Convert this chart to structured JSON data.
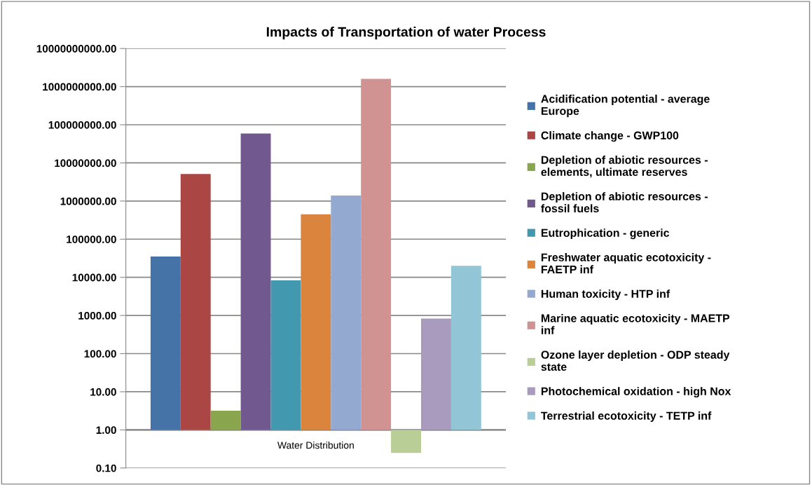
{
  "chart_data": {
    "type": "bar",
    "title": "Impacts of Transportation of water Process",
    "categories": [
      "Water Distribution"
    ],
    "series": [
      {
        "name": "Acidification potential - average Europe",
        "color": "#4572a7",
        "base": [
          1
        ],
        "values": [
          34999
        ]
      },
      {
        "name": "Climate change - GWP100",
        "color": "#aa4643",
        "base": [
          1
        ],
        "values": [
          5099999
        ]
      },
      {
        "name": "Depletion of abiotic resources - elements, ultimate reserves",
        "color": "#89a54e",
        "base": [
          1
        ],
        "values": [
          2.2
        ]
      },
      {
        "name": "Depletion of abiotic resources - fossil fuels",
        "color": "#71588f",
        "base": [
          1
        ],
        "values": [
          58999999
        ]
      },
      {
        "name": "Eutrophication - generic",
        "color": "#4198af",
        "base": [
          1
        ],
        "values": [
          8299
        ]
      },
      {
        "name": "Freshwater aquatic ecotoxicity - FAETP inf",
        "color": "#db843d",
        "base": [
          1
        ],
        "values": [
          449999
        ]
      },
      {
        "name": "Human toxicity - HTP inf",
        "color": "#93a9cf",
        "base": [
          1
        ],
        "values": [
          1399999
        ]
      },
      {
        "name": "Marine aquatic ecotoxicity - MAETP inf",
        "color": "#d19392",
        "base": [
          1
        ],
        "values": [
          1599999999
        ]
      },
      {
        "name": "Ozone layer depletion - ODP steady state",
        "color": "#b9cd96",
        "base": [
          1
        ],
        "values": [
          -0.75
        ]
      },
      {
        "name": "Photochemical oxidation - high Nox",
        "color": "#a99bbd",
        "base": [
          1
        ],
        "values": [
          829
        ]
      },
      {
        "name": "Terrestrial ecotoxicity - TETP inf",
        "color": "#92c5d6",
        "base": [
          1
        ],
        "values": [
          19999
        ]
      }
    ],
    "log": "y",
    "ylim": [
      0.1,
      10000000000
    ],
    "yticks": [
      {
        "value": 0.1,
        "label": "0.10"
      },
      {
        "value": 1,
        "label": "1.00"
      },
      {
        "value": 10,
        "label": "10.00"
      },
      {
        "value": 100,
        "label": "100.00"
      },
      {
        "value": 1000,
        "label": "1000.00"
      },
      {
        "value": 10000,
        "label": "10000.00"
      },
      {
        "value": 100000,
        "label": "100000.00"
      },
      {
        "value": 1000000,
        "label": "1000000.00"
      },
      {
        "value": 10000000,
        "label": "10000000.00"
      },
      {
        "value": 100000000,
        "label": "100000000.00"
      },
      {
        "value": 1000000000,
        "label": "1000000000.00"
      },
      {
        "value": 10000000000,
        "label": "10000000000.00"
      }
    ],
    "ref_lines": [
      {
        "axis": "y",
        "value": 1,
        "color": "#888888"
      }
    ],
    "grid": "y",
    "legend": "right"
  }
}
